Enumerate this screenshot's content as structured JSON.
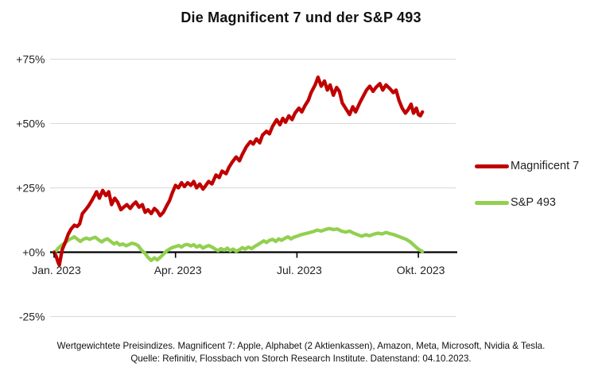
{
  "title": "Die Magnificent 7 und der S&P 493",
  "footer": {
    "line1": "Wertgewichtete Preisindizes. Magnificent 7: Apple, Alphabet (2 Aktienkassen), Amazon, Meta, Microsoft, Nvidia & Tesla.",
    "line2": "Quelle: Refinitiv, Flossbach von Storch Research Institute. Datenstand: 04.10.2023."
  },
  "chart_data": {
    "type": "line",
    "title": "Die Magnificent 7 und der S&P 493",
    "xlabel": "",
    "ylabel": "",
    "x_unit": "months_since_jan_2023",
    "xlim": [
      0,
      9.15
    ],
    "ylim": [
      -25,
      75
    ],
    "grid": true,
    "grid_color": "#d9d9d9",
    "axis_color": "#000000",
    "legend_position": "right",
    "y_ticks": [
      {
        "label": "+75%",
        "value": 75
      },
      {
        "label": "+50%",
        "value": 50
      },
      {
        "label": "+25%",
        "value": 25
      },
      {
        "label": "+0%",
        "value": 0
      },
      {
        "label": "-25%",
        "value": -25
      }
    ],
    "x_ticks": [
      {
        "label": "Jan. 2023",
        "value": 0
      },
      {
        "label": "Apr. 2023",
        "value": 3
      },
      {
        "label": "Jul. 2023",
        "value": 6
      },
      {
        "label": "Okt. 2023",
        "value": 9
      }
    ],
    "series": [
      {
        "name": "Magnificent 7",
        "color": "#c00000",
        "points": [
          [
            0.0,
            0
          ],
          [
            0.05,
            -1.5
          ],
          [
            0.1,
            -4
          ],
          [
            0.13,
            -5
          ],
          [
            0.2,
            1
          ],
          [
            0.28,
            4
          ],
          [
            0.35,
            7
          ],
          [
            0.42,
            9
          ],
          [
            0.5,
            10.5
          ],
          [
            0.57,
            10
          ],
          [
            0.63,
            11
          ],
          [
            0.7,
            15
          ],
          [
            0.78,
            16.5
          ],
          [
            0.85,
            18
          ],
          [
            0.93,
            20
          ],
          [
            1.0,
            22
          ],
          [
            1.05,
            23.5
          ],
          [
            1.12,
            21
          ],
          [
            1.2,
            24
          ],
          [
            1.28,
            22
          ],
          [
            1.35,
            23.5
          ],
          [
            1.42,
            18.5
          ],
          [
            1.5,
            21
          ],
          [
            1.57,
            19.5
          ],
          [
            1.65,
            16.5
          ],
          [
            1.72,
            17.5
          ],
          [
            1.8,
            18.5
          ],
          [
            1.88,
            17
          ],
          [
            1.95,
            18.5
          ],
          [
            2.02,
            19.5
          ],
          [
            2.1,
            17.5
          ],
          [
            2.18,
            18.5
          ],
          [
            2.25,
            15.5
          ],
          [
            2.32,
            16.5
          ],
          [
            2.4,
            15
          ],
          [
            2.48,
            17
          ],
          [
            2.55,
            16
          ],
          [
            2.62,
            14.2
          ],
          [
            2.7,
            15.5
          ],
          [
            2.78,
            18
          ],
          [
            2.85,
            20
          ],
          [
            2.92,
            23
          ],
          [
            3.0,
            26
          ],
          [
            3.07,
            25
          ],
          [
            3.15,
            27
          ],
          [
            3.22,
            25.5
          ],
          [
            3.3,
            27
          ],
          [
            3.38,
            26
          ],
          [
            3.45,
            27.5
          ],
          [
            3.52,
            25
          ],
          [
            3.6,
            26.5
          ],
          [
            3.68,
            24.5
          ],
          [
            3.75,
            26
          ],
          [
            3.82,
            27.5
          ],
          [
            3.9,
            26.5
          ],
          [
            4.0,
            30
          ],
          [
            4.08,
            29
          ],
          [
            4.15,
            31.5
          ],
          [
            4.25,
            30.5
          ],
          [
            4.32,
            33
          ],
          [
            4.4,
            35
          ],
          [
            4.5,
            37
          ],
          [
            4.58,
            35.5
          ],
          [
            4.65,
            38
          ],
          [
            4.75,
            41
          ],
          [
            4.85,
            43
          ],
          [
            4.92,
            42
          ],
          [
            5.0,
            44
          ],
          [
            5.08,
            42.5
          ],
          [
            5.15,
            45.5
          ],
          [
            5.25,
            47
          ],
          [
            5.32,
            46
          ],
          [
            5.4,
            49
          ],
          [
            5.5,
            51.5
          ],
          [
            5.58,
            49.5
          ],
          [
            5.65,
            52
          ],
          [
            5.72,
            50.5
          ],
          [
            5.8,
            53
          ],
          [
            5.88,
            51.5
          ],
          [
            5.95,
            54
          ],
          [
            6.05,
            56
          ],
          [
            6.12,
            54.5
          ],
          [
            6.2,
            57
          ],
          [
            6.28,
            59
          ],
          [
            6.35,
            62
          ],
          [
            6.45,
            65
          ],
          [
            6.52,
            68
          ],
          [
            6.6,
            64.5
          ],
          [
            6.68,
            66.5
          ],
          [
            6.75,
            63
          ],
          [
            6.82,
            65
          ],
          [
            6.9,
            61
          ],
          [
            6.98,
            64
          ],
          [
            7.05,
            62.5
          ],
          [
            7.12,
            58
          ],
          [
            7.2,
            56
          ],
          [
            7.3,
            53.5
          ],
          [
            7.38,
            56.5
          ],
          [
            7.45,
            54.5
          ],
          [
            7.55,
            58
          ],
          [
            7.65,
            61
          ],
          [
            7.72,
            63
          ],
          [
            7.8,
            64.5
          ],
          [
            7.88,
            62.5
          ],
          [
            7.95,
            64
          ],
          [
            8.05,
            65.5
          ],
          [
            8.12,
            63
          ],
          [
            8.2,
            65
          ],
          [
            8.3,
            63.5
          ],
          [
            8.38,
            62
          ],
          [
            8.45,
            63
          ],
          [
            8.52,
            59
          ],
          [
            8.6,
            56
          ],
          [
            8.68,
            54
          ],
          [
            8.75,
            55.5
          ],
          [
            8.82,
            57.5
          ],
          [
            8.88,
            54
          ],
          [
            8.95,
            56
          ],
          [
            9.0,
            53.5
          ],
          [
            9.05,
            53
          ],
          [
            9.1,
            54.5
          ]
        ]
      },
      {
        "name": "S&P 493",
        "color": "#92d050",
        "points": [
          [
            0.0,
            0
          ],
          [
            0.05,
            0.5
          ],
          [
            0.1,
            1.5
          ],
          [
            0.17,
            2.5
          ],
          [
            0.25,
            3.5
          ],
          [
            0.3,
            4
          ],
          [
            0.38,
            5
          ],
          [
            0.45,
            5.5
          ],
          [
            0.5,
            6
          ],
          [
            0.58,
            5
          ],
          [
            0.65,
            4.2
          ],
          [
            0.72,
            5
          ],
          [
            0.8,
            5.5
          ],
          [
            0.88,
            5
          ],
          [
            0.95,
            5.5
          ],
          [
            1.02,
            5.8
          ],
          [
            1.1,
            4.8
          ],
          [
            1.18,
            4
          ],
          [
            1.25,
            4.8
          ],
          [
            1.32,
            5.2
          ],
          [
            1.4,
            4.2
          ],
          [
            1.48,
            3.2
          ],
          [
            1.55,
            3.8
          ],
          [
            1.62,
            2.8
          ],
          [
            1.7,
            3.2
          ],
          [
            1.78,
            2.5
          ],
          [
            1.85,
            3
          ],
          [
            1.92,
            3.5
          ],
          [
            2.0,
            3.2
          ],
          [
            2.08,
            2.5
          ],
          [
            2.15,
            1
          ],
          [
            2.25,
            -0.5
          ],
          [
            2.32,
            -2
          ],
          [
            2.4,
            -3.2
          ],
          [
            2.48,
            -2.2
          ],
          [
            2.55,
            -3
          ],
          [
            2.62,
            -2
          ],
          [
            2.7,
            -0.8
          ],
          [
            2.78,
            0.5
          ],
          [
            2.85,
            1.2
          ],
          [
            2.92,
            1.8
          ],
          [
            3.0,
            2.2
          ],
          [
            3.08,
            2.6
          ],
          [
            3.15,
            2
          ],
          [
            3.22,
            2.8
          ],
          [
            3.3,
            3
          ],
          [
            3.38,
            2.4
          ],
          [
            3.45,
            2.9
          ],
          [
            3.52,
            2
          ],
          [
            3.6,
            2.6
          ],
          [
            3.68,
            1.6
          ],
          [
            3.75,
            2.2
          ],
          [
            3.82,
            2.6
          ],
          [
            3.9,
            2
          ],
          [
            3.98,
            1.2
          ],
          [
            4.05,
            0.6
          ],
          [
            4.12,
            1.4
          ],
          [
            4.2,
            0.8
          ],
          [
            4.28,
            1.6
          ],
          [
            4.35,
            0.6
          ],
          [
            4.42,
            1.2
          ],
          [
            4.5,
            0.4
          ],
          [
            4.58,
            1
          ],
          [
            4.65,
            1.8
          ],
          [
            4.72,
            1.2
          ],
          [
            4.8,
            2
          ],
          [
            4.88,
            1.4
          ],
          [
            4.95,
            2.2
          ],
          [
            5.02,
            2.8
          ],
          [
            5.1,
            3.6
          ],
          [
            5.18,
            4.4
          ],
          [
            5.25,
            3.8
          ],
          [
            5.32,
            4.6
          ],
          [
            5.4,
            5
          ],
          [
            5.48,
            4.2
          ],
          [
            5.55,
            5.2
          ],
          [
            5.62,
            4.6
          ],
          [
            5.7,
            5.4
          ],
          [
            5.78,
            6
          ],
          [
            5.85,
            5.2
          ],
          [
            5.92,
            5.8
          ],
          [
            6.0,
            6.2
          ],
          [
            6.1,
            6.8
          ],
          [
            6.2,
            7.2
          ],
          [
            6.3,
            7.6
          ],
          [
            6.4,
            8
          ],
          [
            6.5,
            8.6
          ],
          [
            6.6,
            8.2
          ],
          [
            6.7,
            8.8
          ],
          [
            6.8,
            9.2
          ],
          [
            6.9,
            8.8
          ],
          [
            7.0,
            9
          ],
          [
            7.1,
            8.2
          ],
          [
            7.2,
            7.8
          ],
          [
            7.3,
            8.2
          ],
          [
            7.4,
            7.4
          ],
          [
            7.5,
            6.8
          ],
          [
            7.6,
            6.2
          ],
          [
            7.7,
            6.8
          ],
          [
            7.8,
            6.4
          ],
          [
            7.9,
            7
          ],
          [
            8.0,
            7.4
          ],
          [
            8.1,
            7.1
          ],
          [
            8.2,
            7.7
          ],
          [
            8.3,
            7.2
          ],
          [
            8.4,
            6.8
          ],
          [
            8.5,
            6.2
          ],
          [
            8.6,
            5.6
          ],
          [
            8.7,
            5
          ],
          [
            8.8,
            4
          ],
          [
            8.9,
            2.6
          ],
          [
            9.0,
            1.2
          ],
          [
            9.1,
            0.3
          ]
        ]
      }
    ]
  }
}
